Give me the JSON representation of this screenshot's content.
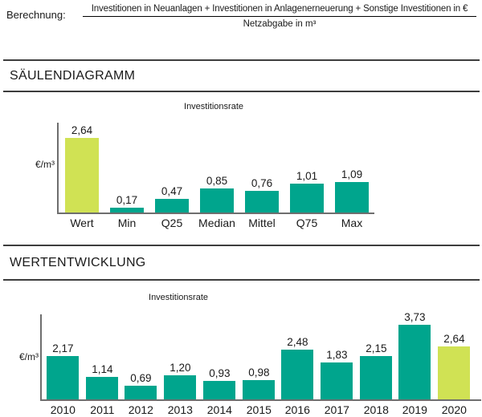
{
  "header": {
    "label": "Berechnung:",
    "formula_numerator": "Investitionen in Neuanlagen + Investitionen in Anlagenerneuerung + Sonstige Investitionen in €",
    "formula_denominator": "Netzabgabe in m³"
  },
  "sections": [
    {
      "title": "SÄULENDIAGRAMM"
    },
    {
      "title": "WERTENTWICKLUNG"
    }
  ],
  "colors": {
    "bar_teal": "#00a58d",
    "bar_highlight": "#d0e254",
    "axis": "#6e6e6e",
    "text": "#1a1a1a",
    "rule": "#3d3d3d"
  },
  "chart_data": [
    {
      "type": "bar",
      "title": "Investitionsrate",
      "ylabel": "€/m³",
      "xlabel": "",
      "categories": [
        "Wert",
        "Min",
        "Q25",
        "Median",
        "Mittel",
        "Q75",
        "Max"
      ],
      "values": [
        2.64,
        0.17,
        0.47,
        0.85,
        0.76,
        1.01,
        1.09
      ],
      "value_labels": [
        "2,64",
        "0,17",
        "0,47",
        "0,85",
        "0,76",
        "1,01",
        "1,09"
      ],
      "highlight_index": 0,
      "highlight_category": "Wert",
      "ylim": [
        0,
        3.2
      ],
      "grid": false,
      "legend": "none"
    },
    {
      "type": "bar",
      "title": "Investitionsrate",
      "ylabel": "€/m³",
      "xlabel": "",
      "categories": [
        "2010",
        "2011",
        "2012",
        "2013",
        "2014",
        "2015",
        "2016",
        "2017",
        "2018",
        "2019",
        "2020"
      ],
      "values": [
        2.17,
        1.14,
        0.69,
        1.2,
        0.93,
        0.98,
        2.48,
        1.83,
        2.15,
        3.73,
        2.64
      ],
      "value_labels": [
        "2,17",
        "1,14",
        "0,69",
        "1,20",
        "0,93",
        "0,98",
        "2,48",
        "1,83",
        "2,15",
        "3,73",
        "2,64"
      ],
      "highlight_index": 10,
      "highlight_category": "2020",
      "ylim": [
        0,
        4.3
      ],
      "grid": false,
      "legend": "none"
    }
  ]
}
